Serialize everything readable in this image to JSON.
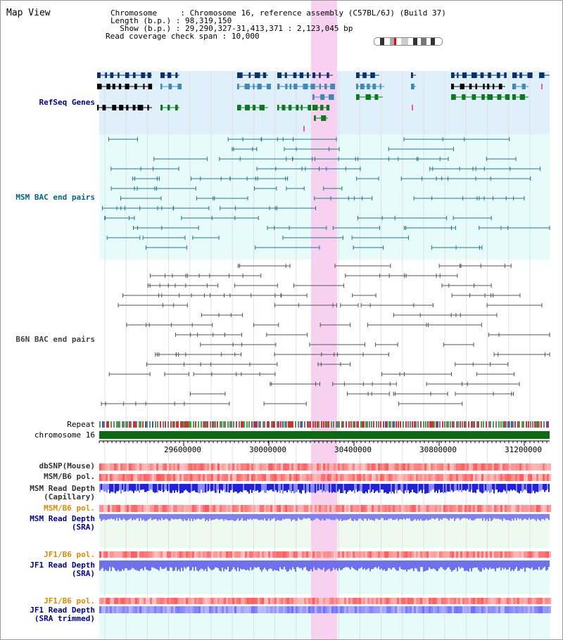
{
  "title": "Map View",
  "header": [
    {
      "key": "Chromosome",
      "value": "Chromosome 16, reference assembly (C57BL/6J) (Build 37)"
    },
    {
      "key": "Length (b.p.)",
      "value": "98,319,150"
    },
    {
      "key": "Show (b.p.)",
      "value": "29,290,327-31,413,371 : 2,123,045 bp"
    },
    {
      "key": "Read coverage check span",
      "value": "10,000"
    }
  ],
  "tracks": {
    "refseq": "RefSeq Genes",
    "msm_bac": "MSM BAC end pairs",
    "b6n_bac": "B6N BAC end pairs",
    "repeat": "Repeat",
    "chromosome": "chromosome 16",
    "dbsnp": "dbSNP(Mouse)",
    "msm_b6_pol_1": "MSM/B6 pol.",
    "msm_read_depth_cap": "MSM Read Depth\n(Capillary)",
    "msm_b6_pol_2": "MSM/B6 pol.",
    "msm_read_depth_sra": "MSM Read Depth\n(SRA)",
    "jf1_b6_pol_1": "JF1/B6 pol.",
    "jf1_read_depth_sra": "JF1 Read Depth\n(SRA)",
    "jf1_b6_pol_2": "JF1/B6 pol.",
    "jf1_read_depth_trim": "JF1 Read Depth\n(SRA trimmed)"
  },
  "axis": {
    "ticks": [
      "29600000",
      "30000000",
      "30400000",
      "30800000",
      "31200000"
    ]
  },
  "colors": {
    "refseq_label": "#000099",
    "msm_label": "#006688",
    "b6n_label": "#444444",
    "orange_label": "#dd8800",
    "blue_label": "#000099",
    "highlight": "#f8d0f0"
  }
}
